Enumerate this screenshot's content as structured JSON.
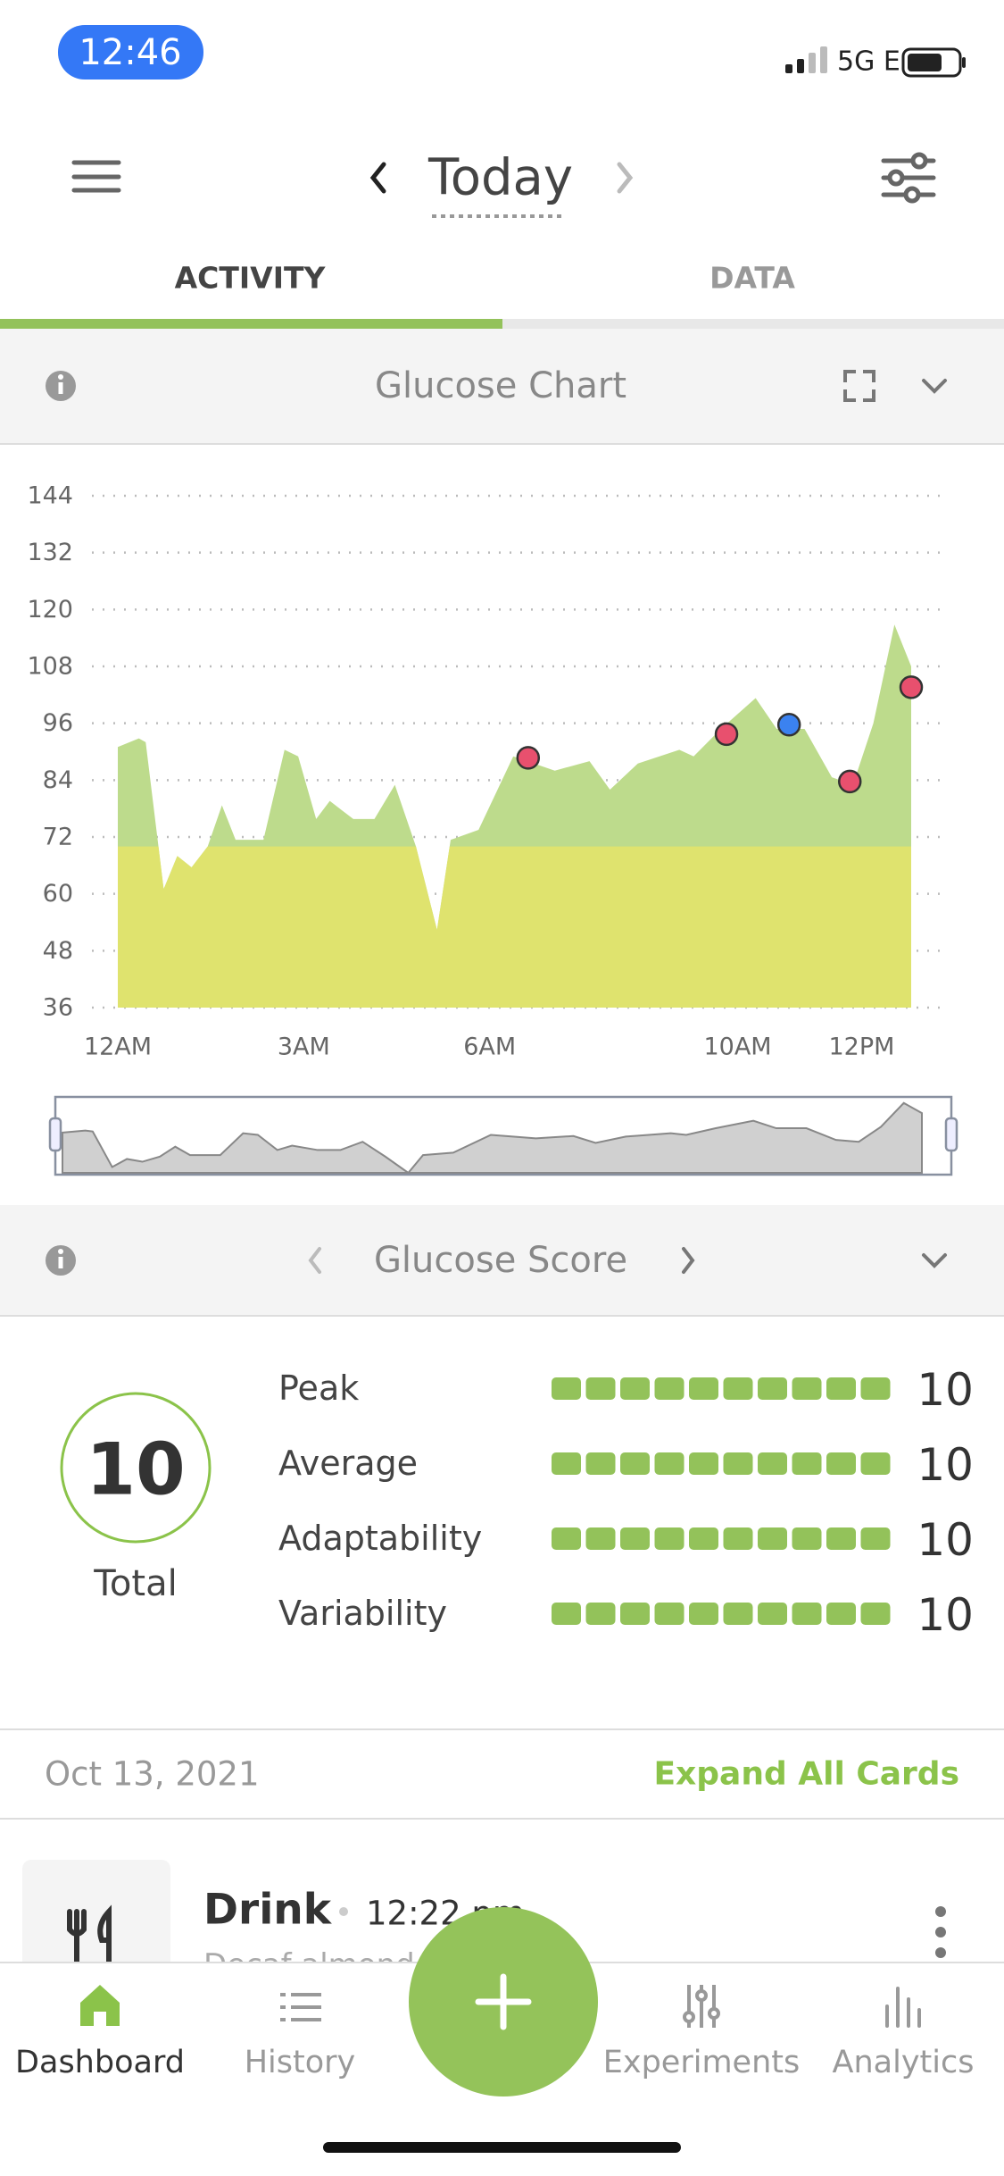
{
  "status_bar": {
    "time": "12:46",
    "network": "5G E"
  },
  "header": {
    "title": "Today"
  },
  "tabs": [
    "ACTIVITY",
    "DATA"
  ],
  "sections": {
    "chart_title": "Glucose Chart",
    "score_title": "Glucose Score"
  },
  "chart_data": {
    "type": "area",
    "x": [
      0,
      0.34,
      0.45,
      0.74,
      0.96,
      1.19,
      1.45,
      1.68,
      1.9,
      2.35,
      2.69,
      2.91,
      3.2,
      3.42,
      3.8,
      4.14,
      4.47,
      4.81,
      5.15,
      5.37,
      5.82,
      6.38,
      7.05,
      7.61,
      7.94,
      8.39,
      9.06,
      9.29,
      9.73,
      10.29,
      10.63,
      11.08,
      11.52,
      11.86,
      12.19,
      12.53,
      12.8
    ],
    "values": [
      91,
      92.8,
      92,
      61,
      68,
      65.6,
      70,
      78.7,
      71.4,
      71.4,
      90.4,
      89,
      75.8,
      79.6,
      75.8,
      75.8,
      83,
      70,
      52.4,
      71.4,
      73.5,
      89,
      86,
      88,
      82,
      87.5,
      90.4,
      89,
      94.8,
      101.3,
      94.8,
      94.8,
      84.6,
      83,
      96,
      116.8,
      108
    ],
    "color": "#bddb8c",
    "threshold": 70,
    "threshold_color": "#dfe36e",
    "markers": {
      "x": [
        6.62,
        9.82,
        10.83,
        11.81,
        12.8
      ],
      "values": [
        88.7,
        93.7,
        95.7,
        83.7,
        103.6
      ],
      "colors": [
        "#e8506e",
        "#e8506e",
        "#3b82f0",
        "#e8506e",
        "#e8506e"
      ]
    },
    "xlim": [
      0,
      12.8
    ],
    "xticks": [
      {
        "value": 0,
        "label": "12AM"
      },
      {
        "value": 3,
        "label": "3AM"
      },
      {
        "value": 6,
        "label": "6AM"
      },
      {
        "value": 10,
        "label": "10AM"
      },
      {
        "value": 12,
        "label": "12PM"
      }
    ],
    "ylim": [
      36,
      144
    ],
    "yticks": [
      36,
      48,
      60,
      72,
      84,
      96,
      108,
      120,
      132,
      144
    ],
    "grid": true
  },
  "score": {
    "total": 10,
    "total_label": "Total",
    "metrics": [
      {
        "name": "Peak",
        "value": 10
      },
      {
        "name": "Average",
        "value": 10
      },
      {
        "name": "Adaptability",
        "value": 10
      },
      {
        "name": "Variability",
        "value": 10
      }
    ]
  },
  "feed": {
    "date": "Oct 13, 2021",
    "action": "Expand All Cards",
    "cards": [
      {
        "title": "Drink",
        "time": "12:22 pm",
        "detail": "Decaf almond"
      }
    ]
  },
  "tab_bar": [
    "Dashboard",
    "History",
    "Experiments",
    "Analytics"
  ]
}
